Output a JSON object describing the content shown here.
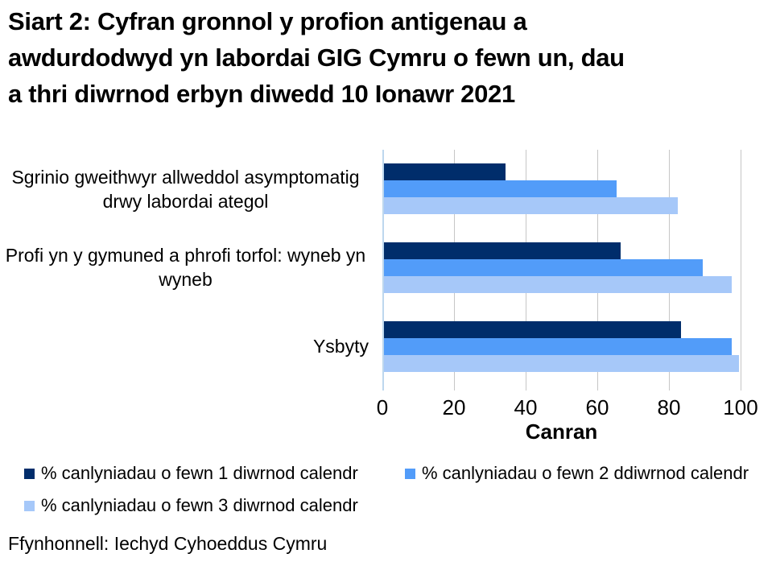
{
  "title_lines": [
    "Siart 2: Cyfran gronnol y profion antigenau a",
    "awdurdodwyd yn labordai GIG Cymru o fewn un, dau",
    "a thri diwrnod erbyn diwedd 10 Ionawr 2021"
  ],
  "source": "Ffynhonnell: Iechyd Cyhoeddus Cymru",
  "chart_data": {
    "type": "bar",
    "orientation": "horizontal",
    "title": "Siart 2: Cyfran gronnol y profion antigenau a awdurdodwyd yn labordai GIG Cymru o fewn un, dau a thri diwrnod erbyn diwedd 10 Ionawr 2021",
    "categories": [
      "Sgrinio gweithwyr allweddol asymptomatig drwy labordai ategol",
      "Profi yn y gymuned a phrofi torfol: wyneb yn wyneb",
      "Ysbyty"
    ],
    "series": [
      {
        "name": "% canlyniadau o fewn 1 diwrnod calendr",
        "color": "#002d6b",
        "values": [
          34,
          66,
          83
        ]
      },
      {
        "name": "% canlyniadau o fewn 2 ddiwrnod calendr",
        "color": "#529cf9",
        "values": [
          65,
          89,
          97
        ]
      },
      {
        "name": "% canlyniadau o fewn 3 diwrnod calendr",
        "color": "#a6c8f9",
        "values": [
          82,
          97,
          99
        ]
      }
    ],
    "xlabel": "Canran",
    "xlim": [
      0,
      100
    ],
    "xticks": [
      0,
      20,
      40,
      60,
      80,
      100
    ],
    "grid": true,
    "legend_position": "bottom",
    "colors": {
      "gridline": "#c6c6c6",
      "zero_axis": "#bdd7ee",
      "text": "#000000"
    }
  }
}
